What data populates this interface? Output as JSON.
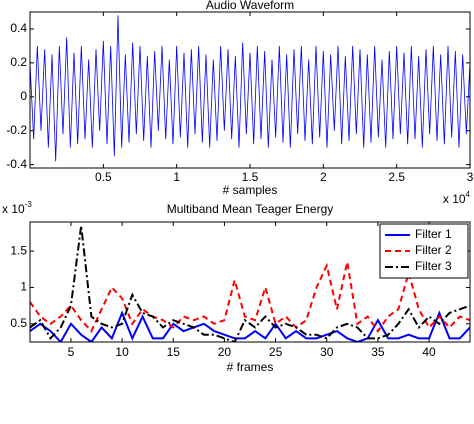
{
  "chart_data": [
    {
      "type": "line",
      "title": "Audio Waveform",
      "x_label": "# samples",
      "x_multiplier": {
        "base": "x 10",
        "power": "4"
      },
      "xlim": [
        0,
        3
      ],
      "xticks": [
        0.5,
        1,
        1.5,
        2,
        2.5,
        3
      ],
      "ylim": [
        -0.42,
        0.5
      ],
      "yticks": [
        -0.4,
        -0.2,
        0,
        0.2,
        0.4
      ],
      "x": [
        0,
        0.025,
        0.05,
        0.075,
        0.1,
        0.125,
        0.15,
        0.175,
        0.2,
        0.225,
        0.25,
        0.275,
        0.3,
        0.325,
        0.35,
        0.375,
        0.4,
        0.425,
        0.45,
        0.475,
        0.5,
        0.525,
        0.55,
        0.575,
        0.6,
        0.625,
        0.65,
        0.675,
        0.7,
        0.725,
        0.75,
        0.775,
        0.8,
        0.825,
        0.85,
        0.875,
        0.9,
        0.925,
        0.95,
        0.975,
        1,
        1.025,
        1.05,
        1.075,
        1.1,
        1.125,
        1.15,
        1.175,
        1.2,
        1.225,
        1.25,
        1.275,
        1.3,
        1.325,
        1.35,
        1.375,
        1.4,
        1.425,
        1.45,
        1.475,
        1.5,
        1.525,
        1.55,
        1.575,
        1.6,
        1.625,
        1.65,
        1.675,
        1.7,
        1.725,
        1.75,
        1.775,
        1.8,
        1.825,
        1.85,
        1.875,
        1.9,
        1.925,
        1.95,
        1.975,
        2,
        2.025,
        2.05,
        2.075,
        2.1,
        2.125,
        2.15,
        2.175,
        2.2,
        2.225,
        2.25,
        2.275,
        2.3,
        2.325,
        2.35,
        2.375,
        2.4,
        2.425,
        2.45,
        2.475,
        2.5,
        2.525,
        2.55,
        2.575,
        2.6,
        2.625,
        2.65,
        2.675,
        2.7,
        2.725,
        2.75,
        2.775,
        2.8,
        2.825,
        2.85,
        2.875,
        2.9,
        2.925,
        2.95,
        2.975,
        3
      ],
      "series": [
        {
          "color": "#0000ff",
          "line_style": "solid",
          "values": [
            0.2,
            -0.25,
            0.3,
            -0.2,
            0.28,
            -0.3,
            0.25,
            -0.38,
            0.3,
            -0.22,
            0.35,
            -0.3,
            0.26,
            -0.28,
            0.3,
            -0.25,
            0.22,
            -0.3,
            0.28,
            -0.2,
            0.33,
            -0.28,
            0.3,
            -0.35,
            0.48,
            -0.3,
            0.25,
            -0.27,
            0.32,
            -0.22,
            0.3,
            -0.26,
            0.24,
            -0.3,
            0.27,
            -0.2,
            0.3,
            -0.25,
            0.22,
            -0.28,
            0.3,
            -0.24,
            0.26,
            -0.3,
            0.28,
            -0.22,
            0.3,
            -0.27,
            0.25,
            -0.3,
            0.22,
            -0.26,
            0.3,
            -0.2,
            0.28,
            -0.25,
            0.24,
            -0.3,
            0.32,
            -0.22,
            0.26,
            -0.28,
            0.3,
            -0.25,
            0.27,
            -0.3,
            0.22,
            -0.24,
            0.3,
            -0.27,
            0.25,
            -0.3,
            0.28,
            -0.22,
            0.3,
            -0.26,
            0.22,
            -0.28,
            0.3,
            -0.24,
            0.27,
            -0.3,
            0.25,
            -0.2,
            0.3,
            -0.28,
            0.24,
            -0.26,
            0.3,
            -0.22,
            0.28,
            -0.3,
            0.25,
            -0.27,
            0.3,
            -0.24,
            0.22,
            -0.3,
            0.27,
            -0.25,
            0.3,
            -0.22,
            0.26,
            -0.28,
            0.3,
            -0.25,
            0.24,
            -0.3,
            0.28,
            -0.22,
            0.3,
            -0.26,
            0.25,
            -0.28,
            0.3,
            -0.24,
            0.27,
            -0.3,
            0.25,
            -0.22,
            0.2
          ]
        }
      ]
    },
    {
      "type": "line",
      "title": "Multiband Mean Teager Energy",
      "x_label": "# frames",
      "y_multiplier": {
        "base": "x 10",
        "power": "-3"
      },
      "xlim": [
        1,
        44
      ],
      "xticks": [
        5,
        10,
        15,
        20,
        25,
        30,
        35,
        40
      ],
      "ylim": [
        0.25,
        1.9
      ],
      "yticks": [
        0.5,
        1,
        1.5
      ],
      "legend": "upper right",
      "x": [
        1,
        2,
        3,
        4,
        5,
        6,
        7,
        8,
        9,
        10,
        11,
        12,
        13,
        14,
        15,
        16,
        17,
        18,
        19,
        20,
        21,
        22,
        23,
        24,
        25,
        26,
        27,
        28,
        29,
        30,
        31,
        32,
        33,
        34,
        35,
        36,
        37,
        38,
        39,
        40,
        41,
        42,
        43,
        44
      ],
      "series": [
        {
          "name": "Filter 1",
          "color": "#0000ff",
          "line_style": "solid",
          "values": [
            0.4,
            0.5,
            0.4,
            0.25,
            0.5,
            0.35,
            0.25,
            0.45,
            0.3,
            0.65,
            0.3,
            0.6,
            0.3,
            0.3,
            0.5,
            0.4,
            0.45,
            0.5,
            0.4,
            0.35,
            0.3,
            0.3,
            0.4,
            0.3,
            0.5,
            0.3,
            0.4,
            0.3,
            0.3,
            0.35,
            0.4,
            0.3,
            0.25,
            0.3,
            0.55,
            0.3,
            0.3,
            0.35,
            0.3,
            0.3,
            0.65,
            0.3,
            0.3,
            0.45
          ]
        },
        {
          "name": "Filter 2",
          "color": "#ff0000",
          "line_style": "dashed",
          "values": [
            0.8,
            0.6,
            0.5,
            0.6,
            0.75,
            0.55,
            0.4,
            0.7,
            1.0,
            0.85,
            0.5,
            0.7,
            0.6,
            0.55,
            0.45,
            0.6,
            0.55,
            0.6,
            0.5,
            0.55,
            1.1,
            0.6,
            0.55,
            1.0,
            0.5,
            0.6,
            0.45,
            0.55,
            1.0,
            1.3,
            0.7,
            1.35,
            0.5,
            0.6,
            0.4,
            0.6,
            0.7,
            1.2,
            0.7,
            0.45,
            0.6,
            0.45,
            0.6,
            0.55
          ]
        },
        {
          "name": "Filter 3",
          "color": "#000000",
          "line_style": "dashdot",
          "values": [
            0.45,
            0.55,
            0.3,
            0.45,
            0.75,
            1.85,
            0.6,
            0.5,
            0.45,
            0.5,
            0.9,
            0.65,
            0.6,
            0.45,
            0.55,
            0.5,
            0.45,
            0.35,
            0.35,
            0.3,
            0.25,
            0.55,
            0.45,
            0.6,
            0.45,
            0.5,
            0.45,
            0.35,
            0.35,
            0.3,
            0.45,
            0.5,
            0.45,
            0.3,
            0.3,
            0.35,
            0.5,
            0.7,
            0.45,
            0.6,
            0.5,
            0.65,
            0.7,
            0.75
          ]
        }
      ]
    }
  ]
}
